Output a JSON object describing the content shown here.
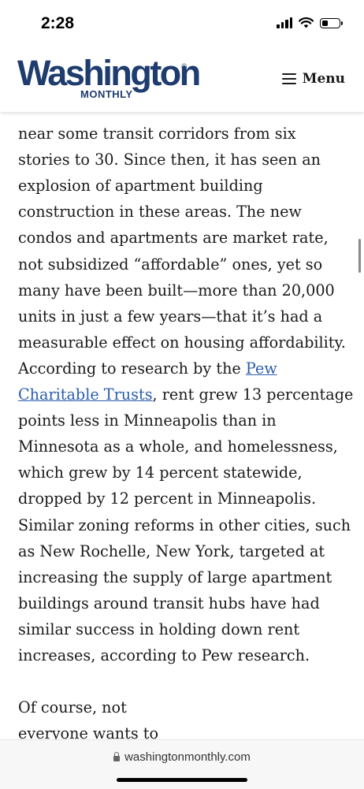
{
  "status_bar": {
    "time": "2:28",
    "battery_level": 0.35
  },
  "header": {
    "logo_wordmark": "Washington",
    "logo_subtitle": "MONTHLY",
    "logo_registered": "®",
    "menu_label": "Menu"
  },
  "article": {
    "lines_a": [
      "near some transit corridors from six",
      "stories to 30. Since then, it has seen an",
      "explosion of apartment building",
      "construction in these areas. The new",
      "condos and apartments are market rate,",
      "not subsidized “affordable” ones, yet so",
      "many have been built—more than 20,000",
      "units in just a few years—that it’s had a",
      "measurable effect on housing affordability."
    ],
    "line_pre_link": "According to research by the ",
    "link_part1": "Pew",
    "link_part2": "Charitable Trusts",
    "line_post_link": ", rent grew 13 percentage",
    "lines_b": [
      "points less in Minneapolis than in",
      "Minnesota as a whole, and homelessness,",
      "which grew by 14 percent statewide,",
      "dropped by 12 percent in Minneapolis.",
      "Similar zoning reforms in other cities, such",
      "as New Rochelle, New York, targeted at",
      "increasing the supply of large apartment",
      "buildings around transit hubs have had",
      "similar success in holding down rent",
      "increases, according to Pew research."
    ],
    "para2_lines": [
      "Of course, not",
      "everyone wants to"
    ]
  },
  "browser": {
    "url": "washingtonmonthly.com"
  },
  "colors": {
    "brand": "#1f3c6e",
    "link": "#2a5db0"
  }
}
